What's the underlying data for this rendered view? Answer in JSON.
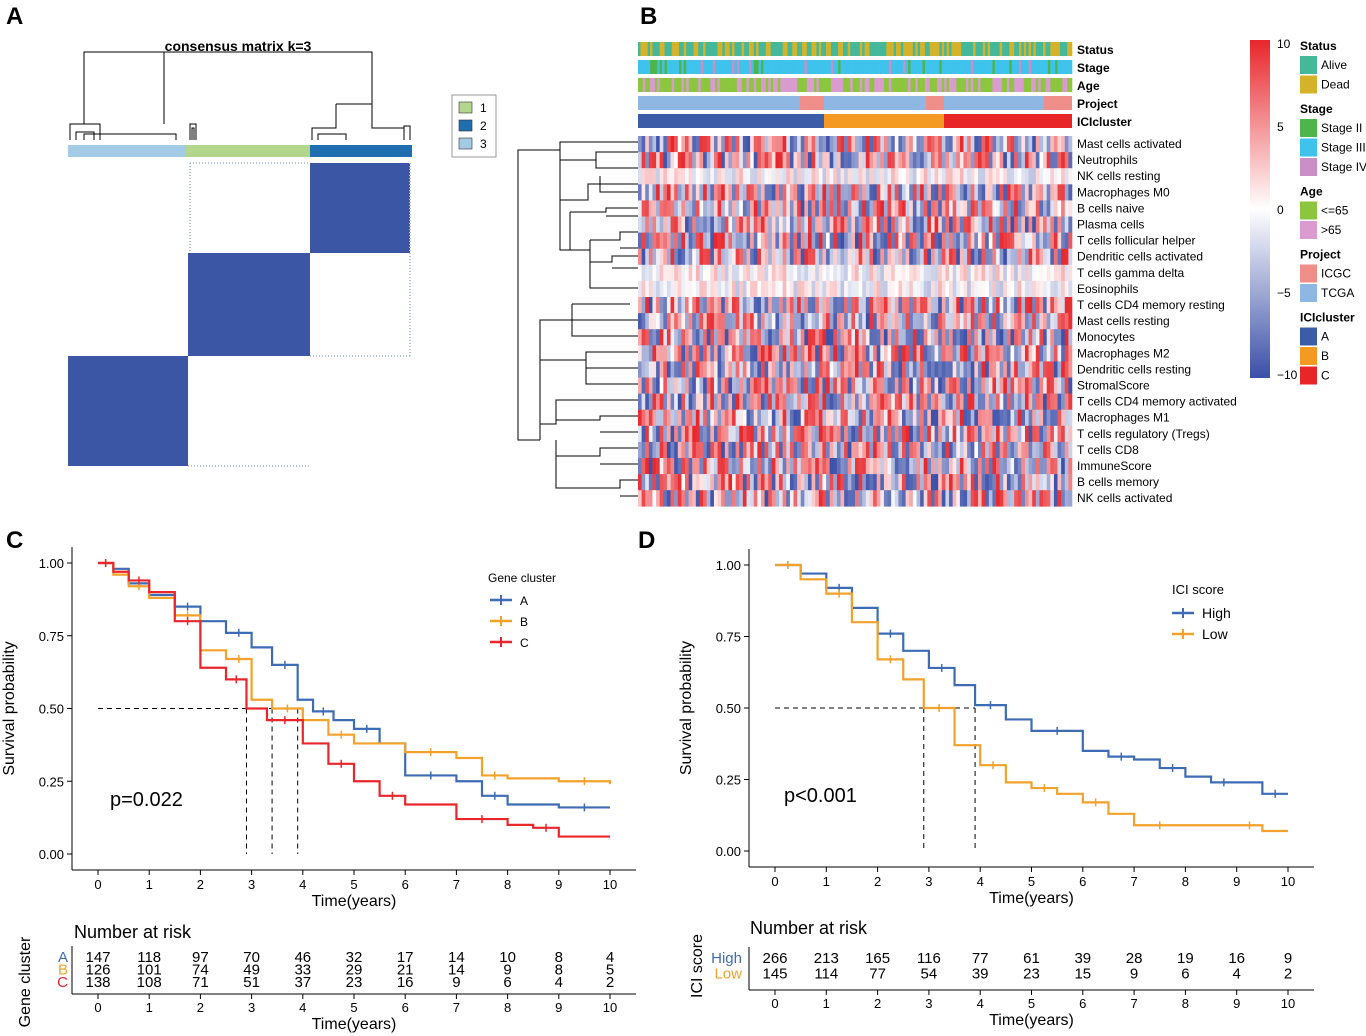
{
  "panels": {
    "A": {
      "letter": "A",
      "title": "consensus matrix k=3",
      "legend": [
        "1",
        "2",
        "3"
      ],
      "colors": {
        "1": "#b2d78c",
        "2": "#1f6fb0",
        "3": "#a3cbe6"
      }
    },
    "B": {
      "letter": "B",
      "annotation_rows": [
        "Status",
        "Stage",
        "Age",
        "Project",
        "ICIcluster"
      ],
      "features": [
        "Mast cells activated",
        "Neutrophils",
        "NK cells resting",
        "Macrophages M0",
        "B cells naive",
        "Plasma cells",
        "T cells follicular helper",
        "Dendritic cells activated",
        "T cells gamma delta",
        "Eosinophils",
        "T cells CD4 memory resting",
        "Mast cells resting",
        "Monocytes",
        "Macrophages M2",
        "Dendritic cells resting",
        "StromalScore",
        "T cells CD4 memory activated",
        "Macrophages M1",
        "T cells regulatory (Tregs)",
        "T cells CD8",
        "ImmuneScore",
        "B cells memory",
        "NK cells activated"
      ],
      "colorbar": {
        "ticks": [
          "10",
          "5",
          "0",
          "−5",
          "−10"
        ],
        "low": "#3a4fa8",
        "mid": "#ffffff",
        "high": "#e8262b"
      },
      "legend": [
        {
          "title": "Status",
          "items": [
            {
              "label": "Alive",
              "color": "#45b89a"
            },
            {
              "label": "Dead",
              "color": "#d4b22a"
            }
          ]
        },
        {
          "title": "Stage",
          "items": [
            {
              "label": "Stage II",
              "color": "#4db54a"
            },
            {
              "label": "Stage III",
              "color": "#3ec3ec"
            },
            {
              "label": "Stage IV",
              "color": "#c98fc6"
            }
          ]
        },
        {
          "title": "Age",
          "items": [
            {
              "label": "<=65",
              "color": "#8cc63f"
            },
            {
              "label": ">65",
              "color": "#d99bd0"
            }
          ]
        },
        {
          "title": "Project",
          "items": [
            {
              "label": "ICGC",
              "color": "#f08e89"
            },
            {
              "label": "TCGA",
              "color": "#8fb7e3"
            }
          ]
        },
        {
          "title": "ICIcluster",
          "items": [
            {
              "label": "A",
              "color": "#3d5ca8"
            },
            {
              "label": "B",
              "color": "#f49a22"
            },
            {
              "label": "C",
              "color": "#e82627"
            }
          ]
        }
      ]
    },
    "C": {
      "letter": "C",
      "legend_title": "Gene cluster",
      "pvalue": "p=0.022",
      "risk_title": "Number at risk",
      "risk_ylabel": "Gene cluster"
    },
    "D": {
      "letter": "D",
      "legend_title": "ICI score",
      "pvalue": "p<0.001",
      "risk_title": "Number at risk",
      "risk_ylabel": "ICI score"
    }
  },
  "chart_data": [
    {
      "panel": "C",
      "type": "line",
      "subtype": "kaplan-meier",
      "xlabel": "Time(years)",
      "ylabel": "Survival probability",
      "xlim": [
        0,
        10
      ],
      "ylim": [
        0,
        1
      ],
      "xticks": [
        "0",
        "1",
        "2",
        "3",
        "4",
        "5",
        "6",
        "7",
        "8",
        "9",
        "10"
      ],
      "yticks": [
        "0.00",
        "0.25",
        "0.50",
        "0.75",
        "1.00"
      ],
      "median_line": 0.5,
      "medians": [
        3.9,
        3.4,
        2.9
      ],
      "series": [
        {
          "name": "A",
          "color": "#3d6cb5",
          "x": [
            0,
            0.3,
            0.6,
            1,
            1.5,
            2,
            2.5,
            3,
            3.4,
            3.9,
            4.2,
            4.6,
            5,
            5.5,
            6,
            7,
            7.5,
            8,
            9,
            10
          ],
          "y": [
            1,
            0.98,
            0.93,
            0.89,
            0.85,
            0.8,
            0.76,
            0.71,
            0.65,
            0.53,
            0.49,
            0.46,
            0.43,
            0.38,
            0.27,
            0.25,
            0.2,
            0.17,
            0.16,
            0.16
          ]
        },
        {
          "name": "B",
          "color": "#f2a12a",
          "x": [
            0,
            0.3,
            0.6,
            1,
            1.5,
            2,
            2.5,
            3,
            3.4,
            4,
            4.5,
            5,
            6,
            7,
            7.5,
            8,
            9,
            10
          ],
          "y": [
            1,
            0.96,
            0.92,
            0.88,
            0.82,
            0.7,
            0.67,
            0.53,
            0.5,
            0.46,
            0.41,
            0.38,
            0.35,
            0.33,
            0.27,
            0.26,
            0.25,
            0.24
          ]
        },
        {
          "name": "C",
          "color": "#e8262b",
          "x": [
            0,
            0.3,
            0.6,
            1,
            1.5,
            2,
            2.5,
            2.9,
            3.3,
            4,
            4.5,
            5,
            5.5,
            6,
            7,
            8,
            8.5,
            9,
            10
          ],
          "y": [
            1,
            0.97,
            0.94,
            0.9,
            0.8,
            0.64,
            0.6,
            0.5,
            0.46,
            0.38,
            0.31,
            0.25,
            0.2,
            0.17,
            0.12,
            0.1,
            0.09,
            0.06,
            0.06
          ]
        }
      ],
      "risk_table": {
        "A": [
          "147",
          "118",
          "97",
          "70",
          "46",
          "32",
          "17",
          "14",
          "10",
          "8",
          "4"
        ],
        "B": [
          "126",
          "101",
          "74",
          "49",
          "33",
          "29",
          "21",
          "14",
          "9",
          "8",
          "5"
        ],
        "C": [
          "138",
          "108",
          "71",
          "51",
          "37",
          "23",
          "16",
          "9",
          "6",
          "4",
          "2"
        ]
      }
    },
    {
      "panel": "D",
      "type": "line",
      "subtype": "kaplan-meier",
      "xlabel": "Time(years)",
      "ylabel": "Survival probability",
      "xlim": [
        0,
        10
      ],
      "ylim": [
        0,
        1
      ],
      "xticks": [
        "0",
        "1",
        "2",
        "3",
        "4",
        "5",
        "6",
        "7",
        "8",
        "9",
        "10"
      ],
      "yticks": [
        "0.00",
        "0.25",
        "0.50",
        "0.75",
        "1.00"
      ],
      "median_line": 0.5,
      "medians": [
        3.9,
        2.9
      ],
      "series": [
        {
          "name": "High",
          "color": "#3d6cb5",
          "x": [
            0,
            0.5,
            1,
            1.5,
            2,
            2.5,
            3,
            3.5,
            3.9,
            4.5,
            5,
            6,
            6.5,
            7,
            7.5,
            8,
            8.5,
            9,
            9.5,
            10
          ],
          "y": [
            1,
            0.97,
            0.92,
            0.85,
            0.76,
            0.7,
            0.64,
            0.58,
            0.51,
            0.46,
            0.42,
            0.35,
            0.33,
            0.32,
            0.29,
            0.26,
            0.24,
            0.24,
            0.2,
            0.2
          ]
        },
        {
          "name": "Low",
          "color": "#f2a12a",
          "x": [
            0,
            0.5,
            1,
            1.5,
            2,
            2.5,
            2.9,
            3.5,
            4,
            4.5,
            5,
            5.5,
            6,
            6.5,
            7,
            8,
            9,
            9.5,
            10
          ],
          "y": [
            1,
            0.95,
            0.9,
            0.8,
            0.67,
            0.6,
            0.5,
            0.37,
            0.3,
            0.24,
            0.22,
            0.2,
            0.17,
            0.13,
            0.09,
            0.09,
            0.09,
            0.07,
            0.07
          ]
        }
      ],
      "risk_table": {
        "High": [
          "266",
          "213",
          "165",
          "116",
          "77",
          "61",
          "39",
          "28",
          "19",
          "16",
          "9"
        ],
        "Low": [
          "145",
          "114",
          "77",
          "54",
          "39",
          "23",
          "15",
          "9",
          "6",
          "4",
          "2"
        ]
      }
    }
  ]
}
